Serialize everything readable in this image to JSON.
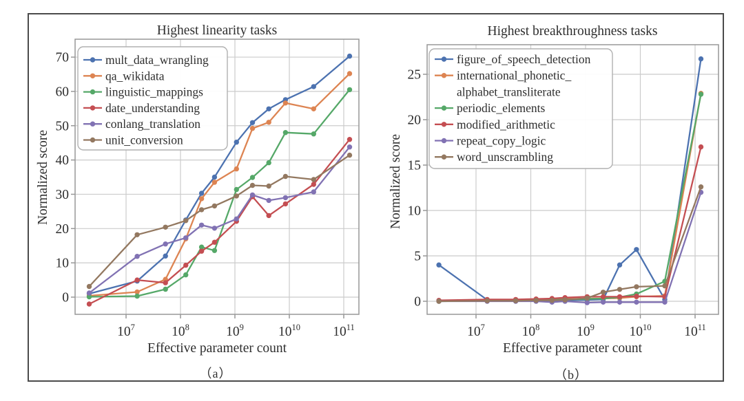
{
  "figure": {
    "background": "#ffffff",
    "border_color": "#4a4a4a",
    "text_color": "#2e2e2e",
    "grid_color": "#cbcbcb",
    "spine_color": "#979797"
  },
  "chart_data": [
    {
      "type": "line",
      "panel": "a",
      "title": "Highest linearity tasks",
      "xlabel": "Effective parameter count",
      "ylabel": "Normalized score",
      "caption": "（a）",
      "x_scale": "log",
      "grid": true,
      "legend_position": "upper left",
      "x": [
        2100000,
        16000000,
        53000000,
        125000000,
        244000000,
        422000000,
        1070000000,
        2100000000,
        4200000000,
        8500000000,
        28000000000,
        128000000000
      ],
      "x_tick_exponents": [
        7,
        8,
        9,
        10,
        11
      ],
      "y_ticks": [
        0,
        10,
        20,
        30,
        40,
        50,
        60,
        70
      ],
      "ylim": [
        -5,
        75.2
      ],
      "xlim_log": [
        6.06,
        11.28
      ],
      "series": [
        {
          "name": "mult_data_wrangling",
          "legend_lines": [
            "mult_data_wrangling"
          ],
          "color": "#4C72B0",
          "values": [
            1.0,
            4.7,
            12.0,
            22.5,
            30.3,
            35.0,
            45.2,
            50.9,
            54.9,
            57.6,
            61.4,
            70.3
          ]
        },
        {
          "name": "qa_wikidata",
          "legend_lines": [
            "qa_wikidata"
          ],
          "color": "#DD8452",
          "values": [
            0.4,
            1.5,
            5.2,
            17.0,
            28.7,
            33.5,
            37.4,
            49.2,
            51.0,
            56.6,
            54.9,
            65.2
          ]
        },
        {
          "name": "linguistic_mappings",
          "legend_lines": [
            "linguistic_mappings"
          ],
          "color": "#55A868",
          "values": [
            0.1,
            0.3,
            2.3,
            6.5,
            14.6,
            13.6,
            31.4,
            34.9,
            39.2,
            48.0,
            47.6,
            60.5
          ]
        },
        {
          "name": "date_understanding",
          "legend_lines": [
            "date_understanding"
          ],
          "color": "#C44E52",
          "values": [
            -2.0,
            5.0,
            4.2,
            9.3,
            13.4,
            16.0,
            22.1,
            29.3,
            23.8,
            27.2,
            32.9,
            46.0
          ]
        },
        {
          "name": "conlang_translation",
          "legend_lines": [
            "conlang_translation"
          ],
          "color": "#8172B3",
          "values": [
            1.2,
            11.9,
            15.5,
            17.3,
            21.0,
            20.1,
            22.8,
            29.8,
            28.2,
            29.0,
            30.7,
            43.8
          ]
        },
        {
          "name": "unit_conversion",
          "legend_lines": [
            "unit_conversion"
          ],
          "color": "#937860",
          "values": [
            3.1,
            18.2,
            20.4,
            22.3,
            25.5,
            26.6,
            29.5,
            32.6,
            32.4,
            35.2,
            34.3,
            41.4
          ]
        }
      ]
    },
    {
      "type": "line",
      "panel": "b",
      "title": "Highest breakthroughness tasks",
      "xlabel": "Effective parameter count",
      "ylabel": "Normalized score",
      "caption": "（b）",
      "x_scale": "log",
      "grid": true,
      "legend_position": "upper left",
      "x": [
        2100000,
        16000000,
        53000000,
        125000000,
        244000000,
        422000000,
        1070000000,
        2100000000,
        4200000000,
        8500000000,
        28000000000,
        128000000000
      ],
      "x_tick_exponents": [
        7,
        8,
        9,
        10,
        11
      ],
      "y_ticks": [
        0,
        5,
        10,
        15,
        20,
        25
      ],
      "ylim": [
        -1.45,
        28.3
      ],
      "xlim_log": [
        6.1,
        11.43
      ],
      "series": [
        {
          "name": "figure_of_speech_detection",
          "legend_lines": [
            "figure_of_speech_detection"
          ],
          "color": "#4C72B0",
          "values": [
            4.0,
            0.15,
            0.1,
            0.1,
            0.1,
            0.1,
            0.15,
            0.2,
            4.0,
            5.7,
            0.2,
            26.7
          ]
        },
        {
          "name": "international_phonetic_alphabet_transliterate",
          "legend_lines": [
            "international_phonetic_",
            "alphabet_transliterate"
          ],
          "color": "#DD8452",
          "values": [
            0.05,
            0.05,
            0.1,
            0.15,
            0.2,
            0.25,
            0.3,
            0.3,
            0.35,
            0.5,
            0.6,
            22.9
          ]
        },
        {
          "name": "periodic_elements",
          "legend_lines": [
            "periodic_elements"
          ],
          "color": "#55A868",
          "values": [
            0.0,
            0.05,
            0.1,
            0.1,
            0.15,
            0.2,
            0.25,
            0.3,
            0.45,
            0.8,
            2.2,
            22.8
          ]
        },
        {
          "name": "modified_arithmetic",
          "legend_lines": [
            "modified_arithmetic"
          ],
          "color": "#C44E52",
          "values": [
            0.1,
            0.2,
            0.2,
            0.25,
            0.3,
            0.4,
            0.5,
            0.5,
            0.5,
            0.55,
            0.5,
            17.0
          ]
        },
        {
          "name": "repeat_copy_logic",
          "legend_lines": [
            "repeat_copy_logic"
          ],
          "color": "#8172B3",
          "values": [
            0.0,
            0.0,
            0.0,
            0.0,
            -0.1,
            0.0,
            -0.15,
            -0.1,
            -0.1,
            -0.1,
            -0.1,
            12.0
          ]
        },
        {
          "name": "word_unscrambling",
          "legend_lines": [
            "word_unscrambling"
          ],
          "color": "#937860",
          "values": [
            0.0,
            0.05,
            0.05,
            0.1,
            0.1,
            0.15,
            0.35,
            1.0,
            1.3,
            1.6,
            1.7,
            12.6
          ]
        }
      ]
    }
  ]
}
